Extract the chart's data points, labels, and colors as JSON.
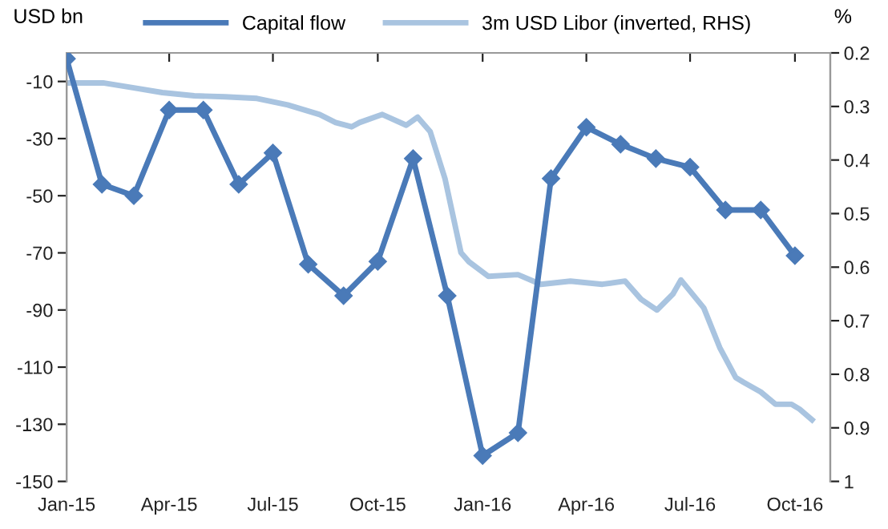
{
  "chart_data": {
    "type": "line",
    "ylabel": "USD bn",
    "y2label": "%",
    "xlim": [
      "2015-01-01",
      "2016-11-01"
    ],
    "xticks": [
      {
        "value": "2015-01-01",
        "label": "Jan-15"
      },
      {
        "value": "2015-04-01",
        "label": "Apr-15"
      },
      {
        "value": "2015-07-01",
        "label": "Jul-15"
      },
      {
        "value": "2015-10-01",
        "label": "Oct-15"
      },
      {
        "value": "2016-01-01",
        "label": "Jan-16"
      },
      {
        "value": "2016-04-01",
        "label": "Apr-16"
      },
      {
        "value": "2016-07-01",
        "label": "Jul-16"
      },
      {
        "value": "2016-10-01",
        "label": "Oct-16"
      }
    ],
    "ylim": [
      -150,
      0
    ],
    "yticks": [
      -150,
      -130,
      -110,
      -90,
      -70,
      -50,
      -30,
      -10
    ],
    "y2lim": [
      1,
      0.2
    ],
    "y2ticks": [
      0.2,
      0.3,
      0.4,
      0.5,
      0.6,
      0.7,
      0.8,
      0.9,
      1
    ],
    "legend": "top",
    "grid": false,
    "series": [
      {
        "name": "Capital flow",
        "color": "#4a7ab8",
        "marker": "diamond",
        "x": [
          "2015-01-01",
          "2015-02-01",
          "2015-03-01",
          "2015-04-01",
          "2015-05-01",
          "2015-06-01",
          "2015-07-01",
          "2015-08-01",
          "2015-09-01",
          "2015-10-01",
          "2015-11-01",
          "2015-12-01",
          "2016-01-01",
          "2016-02-01",
          "2016-03-01",
          "2016-04-01",
          "2016-05-01",
          "2016-06-01",
          "2016-07-01",
          "2016-08-01",
          "2016-09-01",
          "2016-10-01"
        ],
        "values": [
          -2,
          -46,
          -50,
          -20,
          -20,
          -46,
          -35,
          -74,
          -85,
          -73,
          -37,
          -85,
          -141,
          -133,
          -44,
          -26,
          -32,
          -37,
          -40,
          -55,
          -55,
          -71
        ]
      },
      {
        "name": "3m USD Libor (inverted, RHS)",
        "color": "#a9c4e0",
        "axis": "y2",
        "marker": "none",
        "x": [
          "2015-01-01",
          "2015-02-02",
          "2015-02-28",
          "2015-03-26",
          "2015-04-23",
          "2015-05-20",
          "2015-06-17",
          "2015-07-14",
          "2015-08-11",
          "2015-08-25",
          "2015-09-08",
          "2015-09-15",
          "2015-10-05",
          "2015-10-26",
          "2015-11-05",
          "2015-11-16",
          "2015-11-29",
          "2015-12-13",
          "2015-12-20",
          "2016-01-06",
          "2016-02-01",
          "2016-02-21",
          "2016-03-18",
          "2016-04-15",
          "2016-05-05",
          "2016-05-19",
          "2016-06-02",
          "2016-06-16",
          "2016-06-23",
          "2016-07-13",
          "2016-07-27",
          "2016-08-10",
          "2016-08-17",
          "2016-09-01",
          "2016-09-14",
          "2016-09-28",
          "2016-10-05",
          "2016-10-16"
        ],
        "values": [
          0.256,
          0.256,
          0.265,
          0.274,
          0.28,
          0.282,
          0.285,
          0.297,
          0.315,
          0.33,
          0.338,
          0.33,
          0.315,
          0.335,
          0.32,
          0.347,
          0.435,
          0.573,
          0.59,
          0.617,
          0.614,
          0.632,
          0.626,
          0.632,
          0.626,
          0.66,
          0.68,
          0.65,
          0.624,
          0.676,
          0.75,
          0.806,
          0.815,
          0.833,
          0.856,
          0.856,
          0.865,
          0.885
        ]
      }
    ]
  }
}
